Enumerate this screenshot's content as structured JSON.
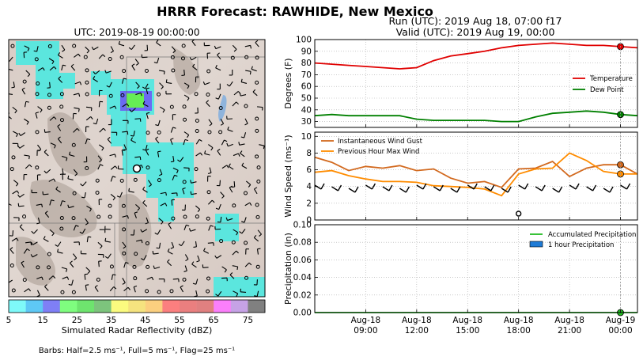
{
  "figure": {
    "title": "HRRR Forecast: RAWHIDE, New Mexico",
    "run_label": "Run (UTC): 2019 Aug 18, 07:00 f17",
    "valid_label": "Valid (UTC): 2019 Aug 19, 00:00",
    "barb_note": "Barbs: Half=2.5 ms⁻¹, Full=5 ms⁻¹, Flag=25 ms⁻¹",
    "colors": {
      "temperature": "#e00000",
      "dewpoint": "#008000",
      "gust": "#d2691e",
      "maxwind": "#ff8c00",
      "accum": "#22bb22",
      "hourly": "#1e7bd6"
    }
  },
  "map": {
    "title": "UTC: 2019-08-19 00:00:00",
    "colorbar_label": "Simulated Radar Reflectivity (dBZ)",
    "colorbar_ticks": [
      "5",
      "15",
      "25",
      "35",
      "45",
      "55",
      "65",
      "75"
    ],
    "colorbar_colors": [
      "#7ef9f9",
      "#5ec8f5",
      "#7f7ff6",
      "#7ffd7f",
      "#6ee46e",
      "#7dc47d",
      "#fbfb7f",
      "#f5e37f",
      "#fbcf7f",
      "#fb7f7f",
      "#ea7f7f",
      "#e08080",
      "#fb7ffb",
      "#c6a2e6",
      "#808080"
    ]
  },
  "chart_data": [
    {
      "type": "line",
      "x": [
        "Aug-18 06:00",
        "Aug-18 07:00",
        "Aug-18 08:00",
        "Aug-18 09:00",
        "Aug-18 10:00",
        "Aug-18 11:00",
        "Aug-18 12:00",
        "Aug-18 13:00",
        "Aug-18 14:00",
        "Aug-18 15:00",
        "Aug-18 16:00",
        "Aug-18 17:00",
        "Aug-18 18:00",
        "Aug-18 19:00",
        "Aug-18 20:00",
        "Aug-18 21:00",
        "Aug-18 22:00",
        "Aug-18 23:00",
        "Aug-19 00:00",
        "Aug-19 01:00"
      ],
      "series": [
        {
          "name": "Temperature",
          "values": [
            80,
            79,
            78,
            77,
            76,
            75,
            76,
            82,
            86,
            88,
            90,
            93,
            95,
            96,
            97,
            96,
            95,
            95,
            94,
            93
          ]
        },
        {
          "name": "Dew Point",
          "values": [
            35,
            36,
            35,
            35,
            35,
            35,
            32,
            31,
            31,
            31,
            31,
            30,
            30,
            34,
            37,
            38,
            39,
            38,
            36,
            35
          ]
        }
      ],
      "ylabel": "Degrees (F)",
      "ylim": [
        25,
        100
      ],
      "yticks": [
        "30",
        "40",
        "50",
        "60",
        "70",
        "80",
        "90",
        "100"
      ],
      "grid": true,
      "legend": "right"
    },
    {
      "type": "line",
      "x": [
        "Aug-18 06:00",
        "Aug-18 07:00",
        "Aug-18 08:00",
        "Aug-18 09:00",
        "Aug-18 10:00",
        "Aug-18 11:00",
        "Aug-18 12:00",
        "Aug-18 13:00",
        "Aug-18 14:00",
        "Aug-18 15:00",
        "Aug-18 16:00",
        "Aug-18 17:00",
        "Aug-18 18:00",
        "Aug-18 19:00",
        "Aug-18 20:00",
        "Aug-18 21:00",
        "Aug-18 22:00",
        "Aug-18 23:00",
        "Aug-19 00:00",
        "Aug-19 01:00"
      ],
      "series": [
        {
          "name": "Instantaneous Wind Gust",
          "values": [
            7.5,
            6.9,
            5.9,
            6.4,
            6.2,
            6.5,
            5.9,
            6.1,
            5.0,
            4.4,
            4.6,
            3.9,
            6.1,
            6.2,
            7.0,
            5.2,
            6.2,
            6.6,
            6.6,
            5.5
          ]
        },
        {
          "name": "Previous Hour Max Wind",
          "values": [
            5.7,
            5.9,
            5.3,
            4.9,
            4.6,
            4.6,
            4.5,
            4.1,
            4.0,
            3.9,
            3.7,
            2.9,
            5.5,
            6.1,
            6.2,
            8.0,
            7.1,
            5.8,
            5.5,
            5.5
          ]
        }
      ],
      "ylabel": "Wind Speed (ms⁻¹)",
      "ylim": [
        0,
        10.5
      ],
      "yticks": [
        "0",
        "2",
        "4",
        "6",
        "8",
        "10"
      ],
      "grid": true,
      "legend": "top-left"
    },
    {
      "type": "line",
      "x": [
        "Aug-18 06:00",
        "Aug-18 07:00",
        "Aug-18 08:00",
        "Aug-18 09:00",
        "Aug-18 10:00",
        "Aug-18 11:00",
        "Aug-18 12:00",
        "Aug-18 13:00",
        "Aug-18 14:00",
        "Aug-18 15:00",
        "Aug-18 16:00",
        "Aug-18 17:00",
        "Aug-18 18:00",
        "Aug-18 19:00",
        "Aug-18 20:00",
        "Aug-18 21:00",
        "Aug-18 22:00",
        "Aug-18 23:00",
        "Aug-19 00:00",
        "Aug-19 01:00"
      ],
      "series": [
        {
          "name": "Accumulated Precipitation",
          "values": [
            0,
            0,
            0,
            0,
            0,
            0,
            0,
            0,
            0,
            0,
            0,
            0,
            0,
            0,
            0,
            0,
            0,
            0,
            0,
            0
          ]
        },
        {
          "name": "1 hour Precipitation",
          "values": [
            0,
            0,
            0,
            0,
            0,
            0,
            0,
            0,
            0,
            0,
            0,
            0,
            0,
            0,
            0,
            0,
            0,
            0,
            0,
            0
          ]
        }
      ],
      "ylabel": "Precipitation (in)",
      "ylim": [
        0,
        0.1
      ],
      "yticks": [
        "0.00",
        "0.02",
        "0.04",
        "0.06",
        "0.08",
        "0.10"
      ],
      "grid": true,
      "legend": "top-right"
    }
  ],
  "xaxis": {
    "tick_dates": [
      "Aug-18",
      "Aug-18",
      "Aug-18",
      "Aug-18",
      "Aug-18",
      "Aug-19"
    ],
    "tick_times": [
      "09:00",
      "12:00",
      "15:00",
      "18:00",
      "21:00",
      "00:00"
    ]
  }
}
